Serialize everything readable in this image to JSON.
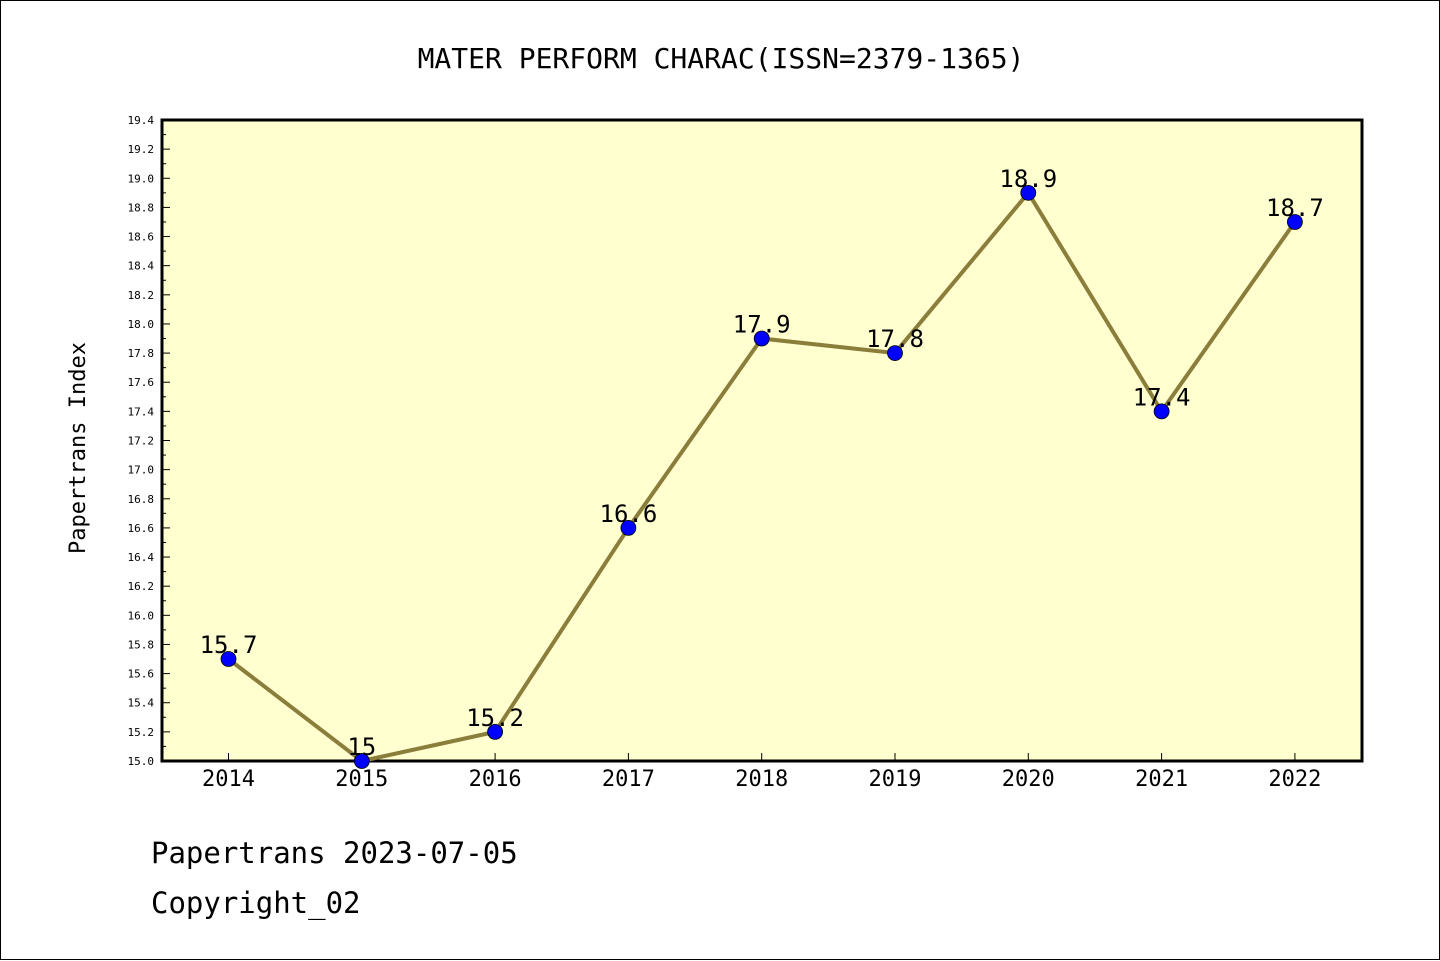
{
  "chart_data": {
    "type": "line",
    "title": "MATER PERFORM CHARAC(ISSN=2379-1365)",
    "xlabel": "",
    "ylabel": "Papertrans Index",
    "categories": [
      "2014",
      "2015",
      "2016",
      "2017",
      "2018",
      "2019",
      "2020",
      "2021",
      "2022"
    ],
    "values": [
      15.7,
      15.0,
      15.2,
      16.6,
      17.9,
      17.8,
      18.9,
      17.4,
      18.7
    ],
    "data_labels": [
      "15.7",
      "15",
      "15.2",
      "16.6",
      "17.9",
      "17.8",
      "18.9",
      "17.4",
      "18.7"
    ],
    "ylim": [
      15.0,
      19.4
    ],
    "yticks": [
      "15.0",
      "15.2",
      "15.4",
      "15.6",
      "15.8",
      "16.0",
      "16.2",
      "16.4",
      "16.6",
      "16.8",
      "17.0",
      "17.2",
      "17.4",
      "17.6",
      "17.8",
      "18.0",
      "18.2",
      "18.4",
      "18.6",
      "18.8",
      "19.0",
      "19.2",
      "19.4"
    ],
    "grid": false,
    "colors": {
      "plot_background": "#ffffd0",
      "line": "#8b7d3a",
      "marker": "#0000ff"
    }
  },
  "footer": {
    "source_date": "Papertrans 2023-07-05",
    "copyright": "Copyright_02"
  }
}
